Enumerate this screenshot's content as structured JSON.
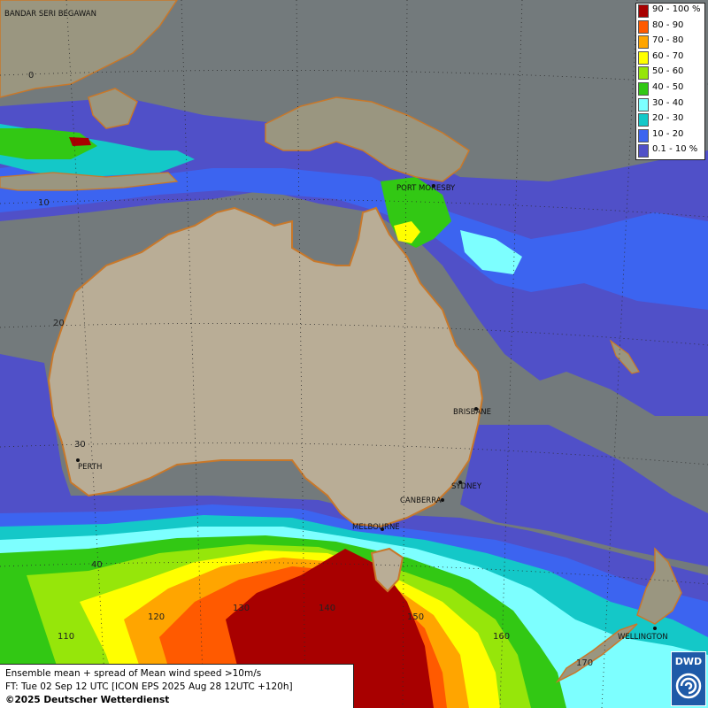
{
  "legend": {
    "items": [
      {
        "label": "90 - 100 %",
        "color": "#a80000"
      },
      {
        "label": "80 - 90",
        "color": "#ff5a00"
      },
      {
        "label": "70 - 80",
        "color": "#ffa500"
      },
      {
        "label": "60 - 70",
        "color": "#ffff00"
      },
      {
        "label": "50 - 60",
        "color": "#96e60a"
      },
      {
        "label": "40 - 50",
        "color": "#32c814"
      },
      {
        "label": "30 - 40",
        "color": "#7dffff"
      },
      {
        "label": "20 - 30",
        "color": "#14c8c8"
      },
      {
        "label": "10 - 20",
        "color": "#3c64f0"
      },
      {
        "label": "0.1 - 10 %",
        "color": "#5050c8"
      }
    ]
  },
  "cities": {
    "bandar": "BANDAR SERI BEGAWAN",
    "port_moresby": "PORT MORESBY",
    "brisbane": "BRISBANE",
    "perth": "PERTH",
    "sydney": "SYDNEY",
    "canberra": "CANBERRA",
    "melbourne": "MELBOURNE",
    "wellington": "WELLINGTON"
  },
  "grid_labels": {
    "lat_0": "0",
    "lat_10": "10",
    "lat_20": "20",
    "lat_30": "30",
    "lat_40": "40",
    "lon_110": "110",
    "lon_120": "120",
    "lon_130": "130",
    "lon_140": "140",
    "lon_150": "150",
    "lon_160": "160",
    "lon_170": "170"
  },
  "caption": {
    "line1": "Ensemble mean + spread of Mean wind speed >10m/s",
    "line2": "FT: Tue 02 Sep 12 UTC [ICON EPS 2025 Aug 28 12UTC +120h]",
    "line3": "©2025 Deutscher Wetterdienst"
  },
  "logo": {
    "text": "DWD"
  },
  "colors": {
    "ocean": "#737a7c",
    "land": "#b9ad96",
    "coast": "#c8782a"
  }
}
